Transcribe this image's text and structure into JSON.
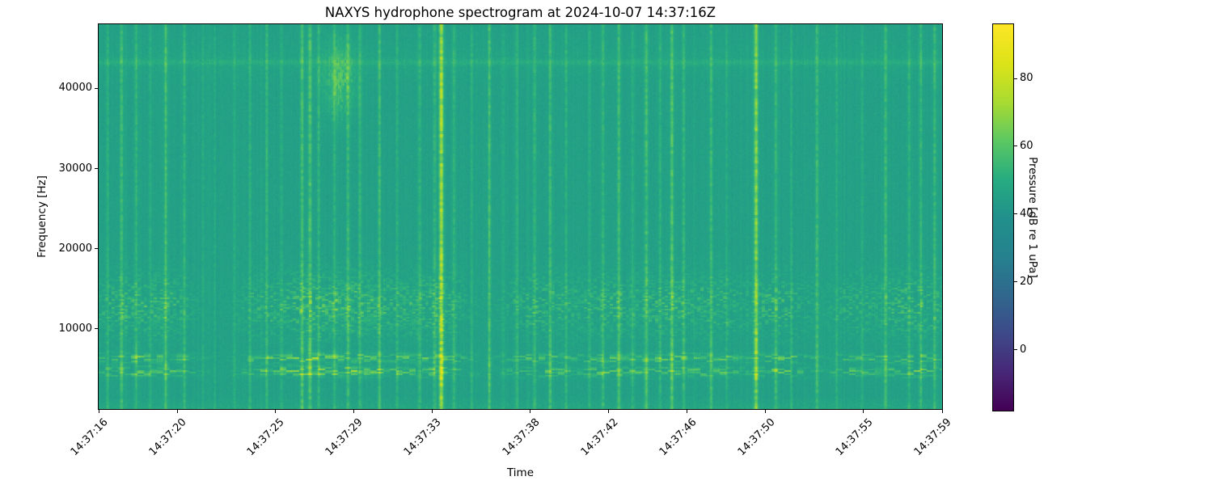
{
  "chart_data": {
    "type": "heatmap",
    "variant": "spectrogram",
    "title": "NAXYS hydrophone spectrogram at 2024-10-07 14:37:16Z",
    "xlabel": "Time",
    "ylabel": "Frequency [Hz]",
    "x_span_seconds": 43,
    "x_ticks": [
      {
        "label": "14:37:16",
        "s": 0
      },
      {
        "label": "14:37:20",
        "s": 4
      },
      {
        "label": "14:37:25",
        "s": 9
      },
      {
        "label": "14:37:29",
        "s": 13
      },
      {
        "label": "14:37:33",
        "s": 17
      },
      {
        "label": "14:37:38",
        "s": 22
      },
      {
        "label": "14:37:42",
        "s": 26
      },
      {
        "label": "14:37:46",
        "s": 30
      },
      {
        "label": "14:37:50",
        "s": 34
      },
      {
        "label": "14:37:55",
        "s": 39
      },
      {
        "label": "14:37:59",
        "s": 43
      }
    ],
    "y_range_hz": [
      0,
      48000
    ],
    "y_ticks_hz": [
      10000,
      20000,
      30000,
      40000
    ],
    "colorbar": {
      "label": "Pressure [dB re 1 uPa]",
      "ticks_db": [
        0,
        20,
        40,
        60,
        80
      ],
      "vmin_db": -18,
      "vmax_db": 96,
      "colormap": "viridis",
      "anchors": [
        "#440154",
        "#482878",
        "#3e4a89",
        "#31688e",
        "#26828e",
        "#21918c",
        "#27ad81",
        "#5dc863",
        "#aadc32",
        "#dde318",
        "#fde725"
      ]
    },
    "noise_floor_db": 45.3,
    "speckle_db": 2.2,
    "column_noise_db": 1.2,
    "artifact_line": {
      "hz": 43300,
      "peak_db": 3.5,
      "sigma_hz": 260,
      "halo_db": 1.3,
      "halo_sigma_hz": 1500
    },
    "low_band": {
      "cutoff_hz": 1600,
      "boost_db": 2.5
    },
    "midband_blotch": {
      "center_hz": 13000,
      "sigma_hz": 2600
    },
    "tonal_rows": [
      {
        "hz": 6400,
        "sigma_hz": 380
      },
      {
        "hz": 4700,
        "sigma_hz": 420
      }
    ],
    "high_freq_event": {
      "t_s": 12.25,
      "sigma_s": 0.55,
      "center_hz": 41200,
      "sigma_hz": 3100,
      "peak_db": 13
    },
    "transients": [
      {
        "t": 0.45,
        "db": 7
      },
      {
        "t": 1.15,
        "db": 12
      },
      {
        "t": 1.9,
        "db": 9
      },
      {
        "t": 2.6,
        "db": 6
      },
      {
        "t": 3.4,
        "db": 13
      },
      {
        "t": 4.35,
        "db": 9
      },
      {
        "t": 5.3,
        "db": 6
      },
      {
        "t": 5.9,
        "db": 5
      },
      {
        "t": 6.9,
        "db": 5
      },
      {
        "t": 7.7,
        "db": 7
      },
      {
        "t": 8.55,
        "db": 9
      },
      {
        "t": 9.3,
        "db": 6
      },
      {
        "t": 10.35,
        "db": 14
      },
      {
        "t": 10.75,
        "db": 16
      },
      {
        "t": 11.2,
        "db": 10
      },
      {
        "t": 12.0,
        "db": 8
      },
      {
        "t": 12.7,
        "db": 12
      },
      {
        "t": 13.3,
        "db": 10
      },
      {
        "t": 14.3,
        "db": 12
      },
      {
        "t": 15.2,
        "db": 7
      },
      {
        "t": 16.35,
        "db": 9
      },
      {
        "t": 17.1,
        "db": 10
      },
      {
        "t": 17.45,
        "db": 29
      },
      {
        "t": 18.1,
        "db": 8
      },
      {
        "t": 19.0,
        "db": 6
      },
      {
        "t": 19.9,
        "db": 13
      },
      {
        "t": 20.6,
        "db": 5
      },
      {
        "t": 21.3,
        "db": 6
      },
      {
        "t": 22.2,
        "db": 9
      },
      {
        "t": 23.0,
        "db": 12
      },
      {
        "t": 23.8,
        "db": 8
      },
      {
        "t": 25.0,
        "db": 6
      },
      {
        "t": 25.7,
        "db": 9
      },
      {
        "t": 26.5,
        "db": 12
      },
      {
        "t": 27.2,
        "db": 7
      },
      {
        "t": 27.9,
        "db": 14
      },
      {
        "t": 28.6,
        "db": 8
      },
      {
        "t": 29.2,
        "db": 16
      },
      {
        "t": 29.8,
        "db": 10
      },
      {
        "t": 31.2,
        "db": 12
      },
      {
        "t": 32.0,
        "db": 6
      },
      {
        "t": 33.5,
        "db": 25
      },
      {
        "t": 34.5,
        "db": 10
      },
      {
        "t": 35.3,
        "db": 6
      },
      {
        "t": 36.6,
        "db": 12
      },
      {
        "t": 37.6,
        "db": 7
      },
      {
        "t": 38.9,
        "db": 6
      },
      {
        "t": 40.1,
        "db": 12
      },
      {
        "t": 41.3,
        "db": 9
      },
      {
        "t": 41.9,
        "db": 10
      },
      {
        "t": 42.6,
        "db": 11
      }
    ],
    "clusters": [
      {
        "t": 1.6,
        "w": 1.6,
        "db": 11
      },
      {
        "t": 3.6,
        "w": 1.0,
        "db": 8
      },
      {
        "t": 8.3,
        "w": 0.9,
        "db": 8
      },
      {
        "t": 10.8,
        "w": 1.5,
        "db": 14
      },
      {
        "t": 13.0,
        "w": 1.2,
        "db": 11
      },
      {
        "t": 15.0,
        "w": 1.3,
        "db": 10
      },
      {
        "t": 17.3,
        "w": 1.0,
        "db": 12
      },
      {
        "t": 22.6,
        "w": 1.4,
        "db": 11
      },
      {
        "t": 26.0,
        "w": 1.3,
        "db": 10
      },
      {
        "t": 29.2,
        "w": 1.4,
        "db": 11
      },
      {
        "t": 31.5,
        "w": 1.1,
        "db": 9
      },
      {
        "t": 34.6,
        "w": 1.2,
        "db": 12
      },
      {
        "t": 38.6,
        "w": 1.0,
        "db": 8
      },
      {
        "t": 41.6,
        "w": 1.5,
        "db": 12
      }
    ]
  }
}
